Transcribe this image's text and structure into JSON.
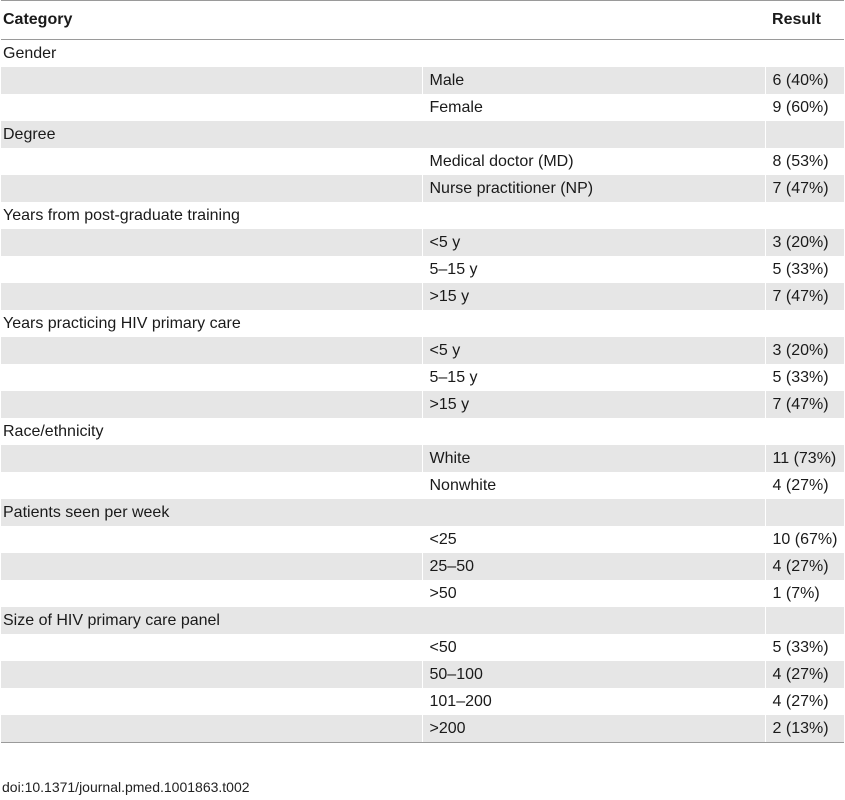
{
  "table": {
    "headers": [
      "Category",
      "Result"
    ],
    "rows": [
      {
        "kind": "category",
        "label": "Gender"
      },
      {
        "kind": "item",
        "sub": "Male",
        "result": "6 (40%)"
      },
      {
        "kind": "item",
        "sub": "Female",
        "result": "9 (60%)"
      },
      {
        "kind": "category",
        "label": "Degree"
      },
      {
        "kind": "item",
        "sub": "Medical doctor (MD)",
        "result": "8 (53%)"
      },
      {
        "kind": "item",
        "sub": "Nurse practitioner (NP)",
        "result": "7 (47%)"
      },
      {
        "kind": "category",
        "label": "Years from post-graduate training"
      },
      {
        "kind": "item",
        "sub": "<5 y",
        "result": "3 (20%)"
      },
      {
        "kind": "item",
        "sub": "5–15 y",
        "result": "5 (33%)"
      },
      {
        "kind": "item",
        "sub": ">15 y",
        "result": "7 (47%)"
      },
      {
        "kind": "category",
        "label": "Years practicing HIV primary care"
      },
      {
        "kind": "item",
        "sub": "<5 y",
        "result": "3 (20%)"
      },
      {
        "kind": "item",
        "sub": "5–15 y",
        "result": "5 (33%)"
      },
      {
        "kind": "item",
        "sub": ">15 y",
        "result": "7 (47%)"
      },
      {
        "kind": "category",
        "label": "Race/ethnicity"
      },
      {
        "kind": "item",
        "sub": "White",
        "result": "11 (73%)"
      },
      {
        "kind": "item",
        "sub": "Nonwhite",
        "result": "4 (27%)"
      },
      {
        "kind": "category",
        "label": "Patients seen per week"
      },
      {
        "kind": "item",
        "sub": "<25",
        "result": "10 (67%)"
      },
      {
        "kind": "item",
        "sub": "25–50",
        "result": "4 (27%)"
      },
      {
        "kind": "item",
        "sub": ">50",
        "result": "1 (7%)"
      },
      {
        "kind": "category",
        "label": "Size of HIV primary care panel"
      },
      {
        "kind": "item",
        "sub": "<50",
        "result": "5 (33%)"
      },
      {
        "kind": "item",
        "sub": "50–100",
        "result": "4 (27%)"
      },
      {
        "kind": "item",
        "sub": "101–200",
        "result": "4 (27%)"
      },
      {
        "kind": "item",
        "sub": ">200",
        "result": "2 (13%)"
      }
    ]
  },
  "footer": {
    "doi": "doi:10.1371/journal.pmed.1001863.t002"
  },
  "colors": {
    "row_shade": "#e6e6e6",
    "rule": "#9a9a9a"
  }
}
